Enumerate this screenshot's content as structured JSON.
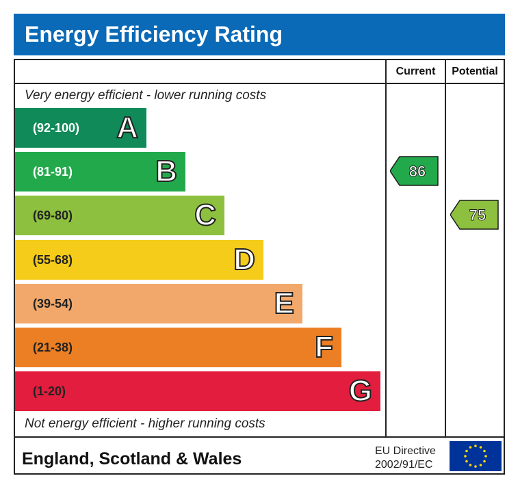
{
  "title": "Energy Efficiency Rating",
  "columns": {
    "current": "Current",
    "potential": "Potential"
  },
  "top_caption": "Very energy efficient - lower running costs",
  "bottom_caption": "Not energy efficient - higher running costs",
  "footer": {
    "region": "England, Scotland & Wales",
    "directive_line1": "EU Directive",
    "directive_line2": "2002/91/EC"
  },
  "chart_data": {
    "type": "bar",
    "categories": [
      "A",
      "B",
      "C",
      "D",
      "E",
      "F",
      "G"
    ],
    "ranges": [
      "(92-100)",
      "(81-91)",
      "(69-80)",
      "(55-68)",
      "(39-54)",
      "(21-38)",
      "(1-20)"
    ],
    "colors": [
      "#0f8a58",
      "#22a94c",
      "#8dc03f",
      "#f5cc19",
      "#f1a86a",
      "#ec7f23",
      "#e31d3d"
    ],
    "range_text_colors": [
      "#ffffff",
      "#ffffff",
      "#222222",
      "#222222",
      "#222222",
      "#222222",
      "#222222"
    ],
    "current": {
      "value": 86,
      "band": "B",
      "color": "#22a94c"
    },
    "potential": {
      "value": 75,
      "band": "C",
      "color": "#8dc03f"
    }
  }
}
